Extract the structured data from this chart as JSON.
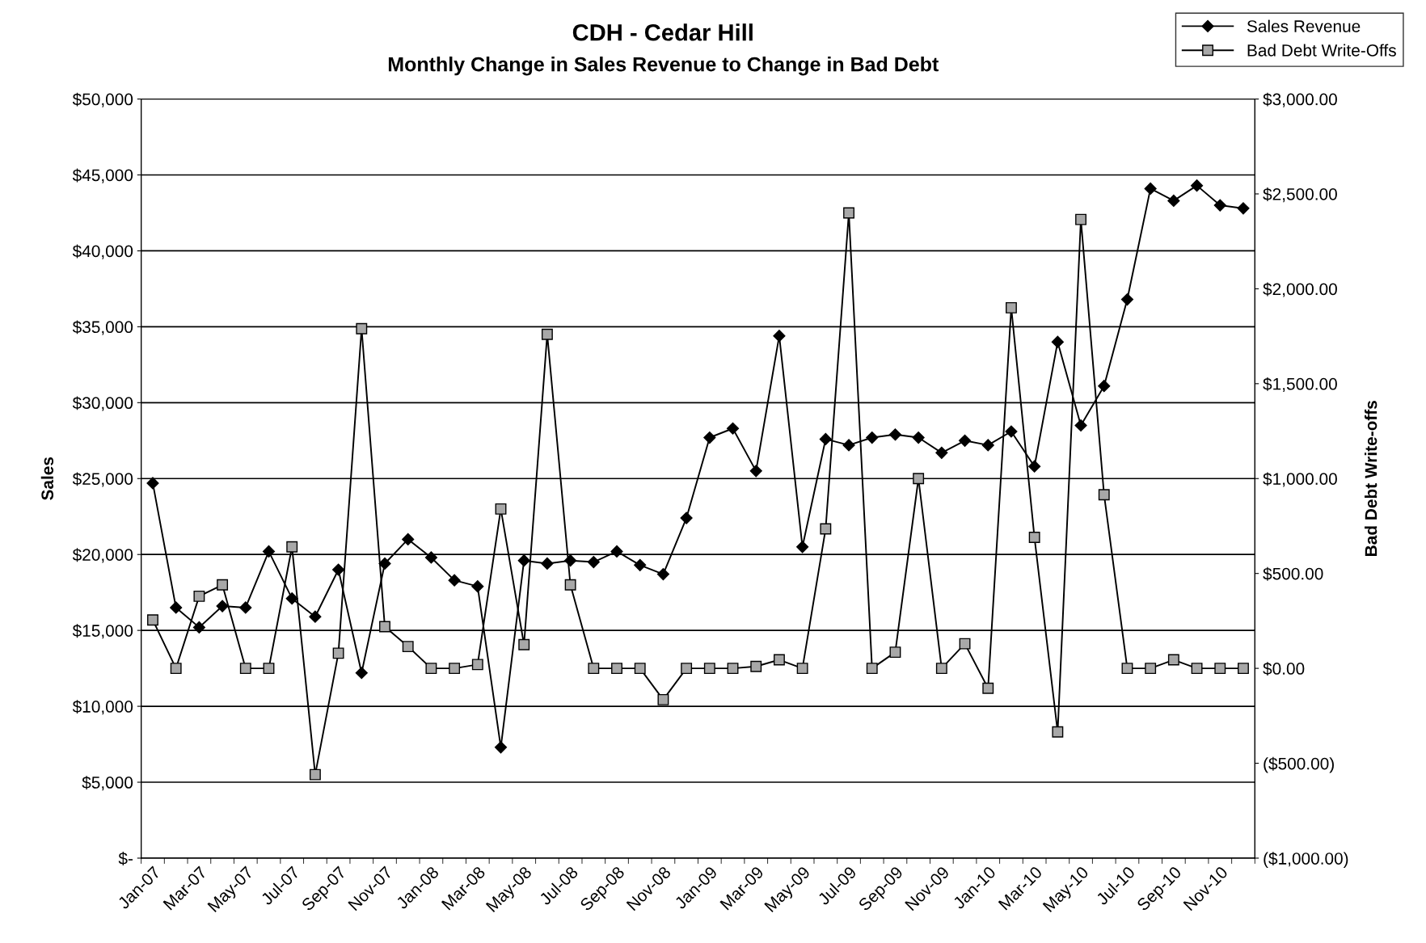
{
  "chart_data": {
    "type": "line",
    "title": "CDH - Cedar Hill",
    "subtitle": "Monthly Change in Sales Revenue to Change in Bad Debt",
    "ylabel": "Sales",
    "y2label": "Bad Debt Write-offs",
    "categories": [
      "Jan-07",
      null,
      "Mar-07",
      null,
      "May-07",
      null,
      "Jul-07",
      null,
      "Sep-07",
      null,
      "Nov-07",
      null,
      "Jan-08",
      null,
      "Mar-08",
      null,
      "May-08",
      null,
      "Jul-08",
      null,
      "Sep-08",
      null,
      "Nov-08",
      null,
      "Jan-09",
      null,
      "Mar-09",
      null,
      "May-09",
      null,
      "Jul-09",
      null,
      "Sep-09",
      null,
      "Nov-09",
      null,
      "Jan-10",
      null,
      "Mar-10",
      null,
      "May-10",
      null,
      "Jul-10",
      null,
      "Sep-10",
      null,
      "Nov-10",
      null
    ],
    "series": [
      {
        "name": "Sales Revenue",
        "color": "#000000",
        "marker": "diamond",
        "values": [
          24700,
          16500,
          15200,
          16600,
          16500,
          20200,
          17100,
          15900,
          19000,
          12200,
          19400,
          21000,
          19800,
          18300,
          17900,
          7300,
          19600,
          19400,
          19600,
          19500,
          20200,
          19300,
          18700,
          22400,
          27700,
          28300,
          25500,
          34400,
          20500,
          27600,
          27200,
          27700,
          27900,
          27700,
          26700,
          27500,
          27200,
          28100,
          25800,
          34000,
          28500,
          31100,
          36800,
          44100,
          43300,
          44300,
          43000,
          42800
        ]
      },
      {
        "name": "Bad Debt Write-Offs",
        "color": "#000000",
        "marker": "square",
        "axis": "y2",
        "values": [
          255,
          0,
          380,
          440,
          0,
          0,
          640,
          -560,
          80,
          1790,
          220,
          115,
          0,
          0,
          20,
          840,
          125,
          1760,
          440,
          0,
          0,
          0,
          -165,
          0,
          0,
          0,
          10,
          45,
          0,
          735,
          2400,
          0,
          85,
          1000,
          0,
          130,
          -105,
          1900,
          690,
          -335,
          2365,
          915,
          0,
          0,
          45,
          0,
          0,
          0
        ]
      }
    ],
    "ylim": [
      0,
      50000
    ],
    "yticks": [
      {
        "value": 0,
        "label": "$-"
      },
      {
        "value": 5000,
        "label": "$5,000"
      },
      {
        "value": 10000,
        "label": "$10,000"
      },
      {
        "value": 15000,
        "label": "$15,000"
      },
      {
        "value": 20000,
        "label": "$20,000"
      },
      {
        "value": 25000,
        "label": "$25,000"
      },
      {
        "value": 30000,
        "label": "$30,000"
      },
      {
        "value": 35000,
        "label": "$35,000"
      },
      {
        "value": 40000,
        "label": "$40,000"
      },
      {
        "value": 45000,
        "label": "$45,000"
      },
      {
        "value": 50000,
        "label": "$50,000"
      }
    ],
    "y2lim": [
      -1000,
      3000
    ],
    "y2ticks": [
      {
        "value": -1000,
        "label": "($1,000.00)"
      },
      {
        "value": -500,
        "label": "($500.00)"
      },
      {
        "value": 0,
        "label": "$0.00"
      },
      {
        "value": 500,
        "label": "$500.00"
      },
      {
        "value": 1000,
        "label": "$1,000.00"
      },
      {
        "value": 1500,
        "label": "$1,500.00"
      },
      {
        "value": 2000,
        "label": "$2,000.00"
      },
      {
        "value": 2500,
        "label": "$2,500.00"
      },
      {
        "value": 3000,
        "label": "$3,000.00"
      }
    ],
    "grid": "y",
    "legend": "top right",
    "line_style": "solid"
  }
}
